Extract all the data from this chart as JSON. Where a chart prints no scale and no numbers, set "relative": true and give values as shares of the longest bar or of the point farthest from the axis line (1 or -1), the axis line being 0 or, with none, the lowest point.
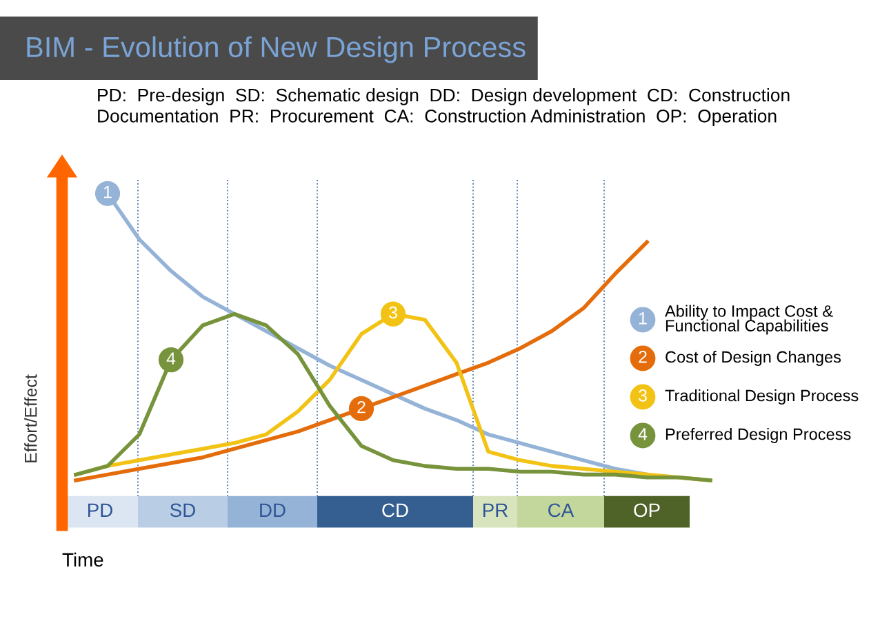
{
  "chart_data": {
    "type": "line",
    "relative": true,
    "title": "BIM - Evolution of New Design Process",
    "xlabel": "Time",
    "ylabel": "Effort/Effect",
    "categories": [
      null,
      null,
      null,
      null,
      null,
      null,
      null,
      null,
      null,
      null,
      null,
      null,
      null,
      null,
      null,
      null,
      null,
      null,
      null,
      null,
      null
    ],
    "series": [
      {
        "name": "Ability to Impact Cost & Functional Capabilities",
        "color": "#95b3d7",
        "values": [
          null,
          1.0,
          0.84,
          0.73,
          0.64,
          0.58,
          0.52,
          0.46,
          0.4,
          0.35,
          0.3,
          0.25,
          0.21,
          0.16,
          0.13,
          0.1,
          0.07,
          0.04,
          0.02,
          null,
          null
        ]
      },
      {
        "name": "Cost of Design Changes",
        "color": "#e46c0a",
        "values": [
          0.0,
          0.02,
          0.04,
          0.06,
          0.08,
          0.11,
          0.14,
          0.17,
          0.21,
          0.25,
          0.29,
          0.33,
          0.37,
          0.41,
          0.46,
          0.52,
          0.6,
          0.72,
          0.83,
          null,
          null
        ]
      },
      {
        "name": "Traditional Design Process",
        "color": "#f2c314",
        "values": [
          0.02,
          0.05,
          0.07,
          0.09,
          0.11,
          0.13,
          0.16,
          0.24,
          0.35,
          0.51,
          0.58,
          0.56,
          0.41,
          0.1,
          0.07,
          0.05,
          0.04,
          0.03,
          0.02,
          0.01,
          0.0
        ]
      },
      {
        "name": "Preferred Design Process",
        "color": "#77933c",
        "values": [
          0.02,
          0.05,
          0.16,
          0.42,
          0.54,
          0.58,
          0.54,
          0.44,
          0.26,
          0.12,
          0.07,
          0.05,
          0.04,
          0.04,
          0.03,
          0.03,
          0.02,
          0.02,
          0.01,
          0.01,
          0.0
        ]
      }
    ],
    "annotations": [
      {
        "text": "1",
        "y": 1.0
      },
      {
        "text": "2",
        "y": 0.25
      },
      {
        "text": "3",
        "y": 0.58
      },
      {
        "text": "4",
        "y": 0.42
      },
      "PD:  Pre-design  SD:  Schematic design  DD:  Design development  CD:  Construction Documentation  PR:  Procurement  CA:  Construction Administration  OP:  Operation",
      "PD",
      "SD",
      "DD",
      "CD",
      "PR",
      "CA",
      "OP"
    ],
    "legend": "right",
    "marker": "none",
    "line_style": "solid"
  }
}
